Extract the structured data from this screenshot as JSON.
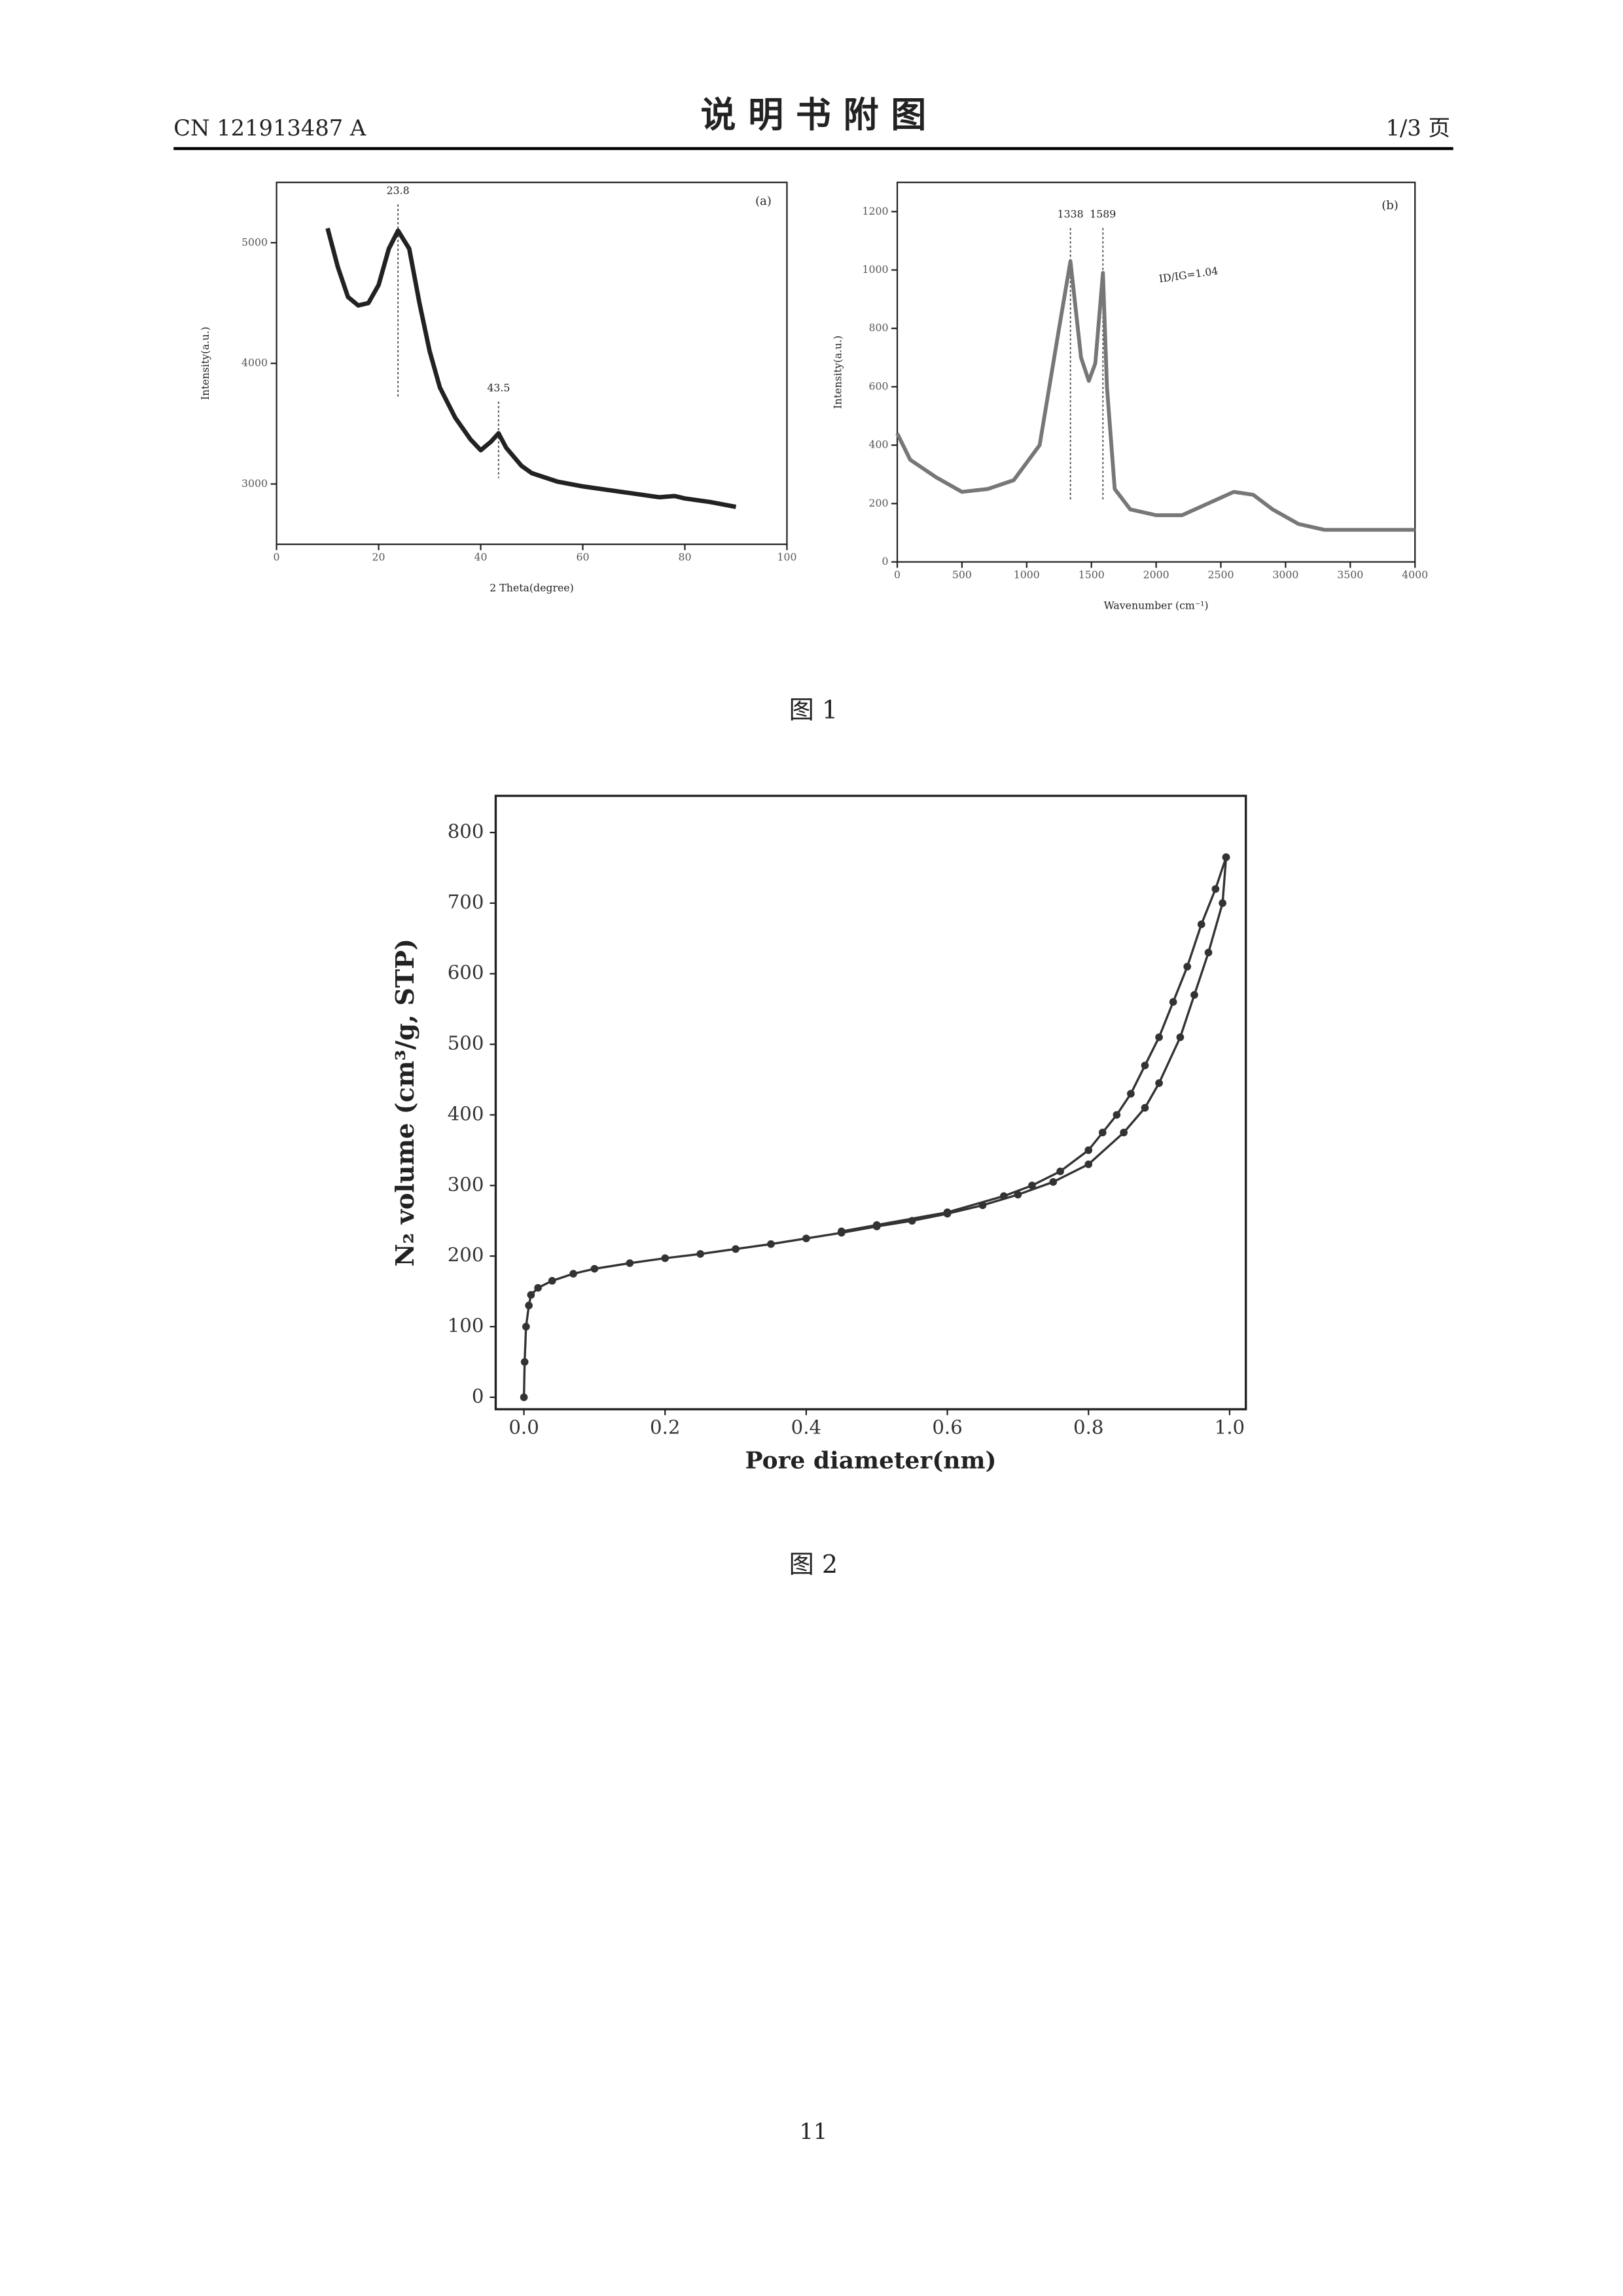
{
  "header": {
    "left": "CN 121913487 A",
    "title": "说 明 书 附 图",
    "right": "1/3 页"
  },
  "captions": [
    "图 1",
    "图 2"
  ],
  "page_number": "11",
  "chart_data": [
    {
      "type": "line",
      "label": "(a)",
      "xlabel": "2 Theta(degree)",
      "ylabel": "Intensity(a.u.)",
      "color": "#222",
      "x": [
        10,
        12,
        14,
        16,
        18,
        20,
        22,
        23.8,
        26,
        28,
        30,
        32,
        35,
        38,
        40,
        42,
        43.5,
        45,
        48,
        50,
        55,
        60,
        65,
        70,
        75,
        78,
        80,
        85,
        90
      ],
      "values": [
        5120,
        4800,
        4550,
        4480,
        4500,
        4650,
        4950,
        5100,
        4950,
        4500,
        4100,
        3800,
        3550,
        3370,
        3280,
        3350,
        3420,
        3300,
        3150,
        3090,
        3020,
        2980,
        2950,
        2920,
        2890,
        2900,
        2880,
        2850,
        2810
      ],
      "xlim": [
        0,
        100
      ],
      "ylim": [
        2500,
        5500
      ],
      "xticks": [
        0,
        20,
        40,
        60,
        80,
        100
      ],
      "yticks": [
        3000,
        4000,
        5000
      ],
      "peaks": [
        {
          "value": 23.8,
          "label": "23.8"
        },
        {
          "value": 43.5,
          "label": "43.5"
        }
      ]
    },
    {
      "type": "line",
      "label": "(b)",
      "xlabel": "Wavenumber (cm⁻¹)",
      "ylabel": "Intensity(a.u.)",
      "color": "#777",
      "annotations": [
        "ID/IG=1.04"
      ],
      "x": [
        0,
        100,
        300,
        500,
        700,
        900,
        1100,
        1250,
        1338,
        1420,
        1480,
        1530,
        1589,
        1620,
        1680,
        1800,
        2000,
        2200,
        2400,
        2600,
        2750,
        2900,
        3100,
        3300,
        3600,
        4000
      ],
      "values": [
        440,
        350,
        290,
        240,
        250,
        280,
        400,
        800,
        1030,
        700,
        620,
        680,
        990,
        600,
        250,
        180,
        160,
        160,
        200,
        240,
        230,
        180,
        130,
        110,
        110,
        110
      ],
      "xlim": [
        0,
        4000
      ],
      "ylim": [
        0,
        1300
      ],
      "xticks": [
        0,
        500,
        1000,
        1500,
        2000,
        2500,
        3000,
        3500,
        4000
      ],
      "yticks": [
        0,
        200,
        400,
        600,
        800,
        1000,
        1200
      ],
      "peaks": [
        {
          "value": 1338,
          "label": "1338"
        },
        {
          "value": 1589,
          "label": "1589"
        }
      ]
    },
    {
      "type": "line",
      "xlabel": "Pore diameter(nm)",
      "ylabel": "N₂ volume (cm³/g, STP)",
      "series": [
        {
          "color": "#333",
          "x": [
            0,
            0.001,
            0.003,
            0.007,
            0.01,
            0.02,
            0.04,
            0.07,
            0.1,
            0.15,
            0.2,
            0.25,
            0.3,
            0.35,
            0.4,
            0.45,
            0.5,
            0.55,
            0.6,
            0.65,
            0.7,
            0.75,
            0.8,
            0.85,
            0.88,
            0.9,
            0.93,
            0.95,
            0.97,
            0.99,
            0.995
          ],
          "values": [
            0,
            50,
            100,
            130,
            145,
            155,
            165,
            175,
            182,
            190,
            197,
            203,
            210,
            217,
            225,
            233,
            242,
            250,
            260,
            272,
            287,
            305,
            330,
            375,
            410,
            445,
            510,
            570,
            630,
            700,
            765
          ]
        },
        {
          "color": "#333",
          "x": [
            0.995,
            0.98,
            0.96,
            0.94,
            0.92,
            0.9,
            0.88,
            0.86,
            0.84,
            0.82,
            0.8,
            0.76,
            0.72,
            0.68,
            0.6,
            0.5,
            0.45
          ],
          "values": [
            765,
            720,
            670,
            610,
            560,
            510,
            470,
            430,
            400,
            375,
            350,
            320,
            300,
            285,
            262,
            244,
            235
          ]
        }
      ],
      "xlim": [
        -0.04,
        1.023
      ],
      "ylim": [
        -17,
        852
      ],
      "xticks": [
        {
          "value": 0,
          "label": "0.0"
        },
        {
          "value": 0.2,
          "label": "0.2"
        },
        {
          "value": 0.4,
          "label": "0.4"
        },
        {
          "value": 0.6,
          "label": "0.6"
        },
        {
          "value": 0.8,
          "label": "0.8"
        },
        {
          "value": 1,
          "label": "1.0"
        }
      ],
      "yticks": [
        0,
        100,
        200,
        300,
        400,
        500,
        600,
        700,
        800
      ]
    }
  ]
}
